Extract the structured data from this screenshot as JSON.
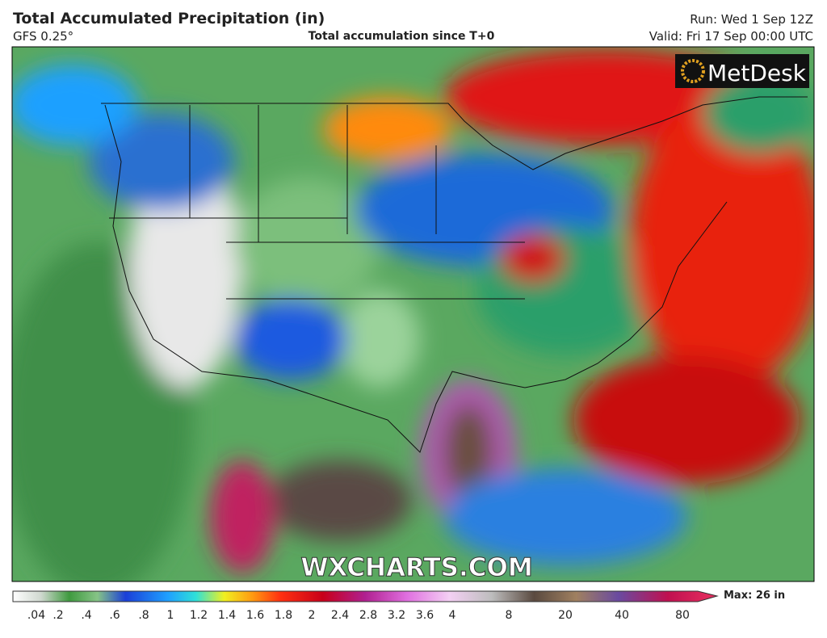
{
  "header": {
    "title": "Total Accumulated Precipitation (in)",
    "model": "GFS 0.25°",
    "subtitle": "Total accumulation since T+0",
    "run": "Run: Wed 1 Sep 12Z",
    "valid": "Valid: Fri 17 Sep 00:00 UTC"
  },
  "logo": "MetDesk",
  "watermark": "WXCHARTS.COM",
  "colorbar": {
    "labels": [
      ".04",
      ".2",
      ".4",
      ".6",
      ".8",
      "1",
      "1.2",
      "1.4",
      "1.6",
      "1.8",
      "2",
      "2.4",
      "2.8",
      "3.2",
      "3.6",
      "4",
      "8",
      "20",
      "40",
      "80"
    ],
    "max_label": "Max: 26 in"
  }
}
